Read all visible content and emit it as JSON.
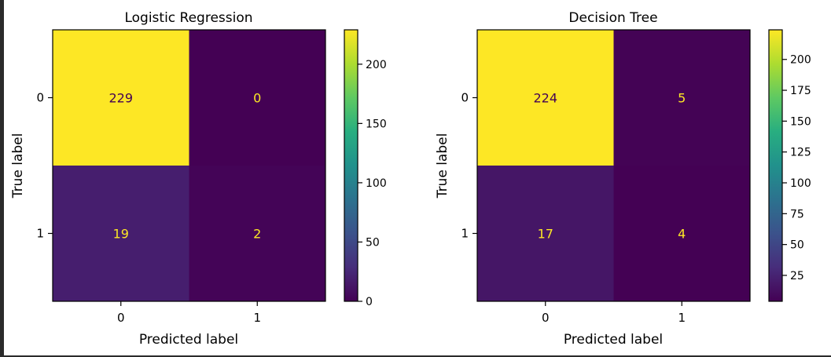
{
  "chart_data": [
    {
      "type": "heatmap",
      "title": "Logistic Regression",
      "xlabel": "Predicted label",
      "ylabel": "True label",
      "x_tick_labels": [
        "0",
        "1"
      ],
      "y_tick_labels": [
        "0",
        "1"
      ],
      "matrix": [
        [
          229,
          0
        ],
        [
          19,
          2
        ]
      ],
      "cell_labels": [
        [
          "229",
          "0"
        ],
        [
          "19",
          "2"
        ]
      ],
      "colormap": "viridis",
      "colorbar": {
        "min": 0,
        "max": 229,
        "ticks": [
          0,
          50,
          100,
          150,
          200
        ],
        "tick_labels": [
          "0",
          "50",
          "100",
          "150",
          "200"
        ]
      }
    },
    {
      "type": "heatmap",
      "title": "Decision Tree",
      "xlabel": "Predicted label",
      "ylabel": "True label",
      "x_tick_labels": [
        "0",
        "1"
      ],
      "y_tick_labels": [
        "0",
        "1"
      ],
      "matrix": [
        [
          224,
          5
        ],
        [
          17,
          4
        ]
      ],
      "cell_labels": [
        [
          "224",
          "5"
        ],
        [
          "17",
          "4"
        ]
      ],
      "colormap": "viridis",
      "colorbar": {
        "min": 4,
        "max": 224,
        "ticks": [
          25,
          50,
          75,
          100,
          125,
          150,
          175,
          200
        ],
        "tick_labels": [
          "25",
          "50",
          "75",
          "100",
          "125",
          "150",
          "175",
          "200"
        ]
      }
    }
  ]
}
